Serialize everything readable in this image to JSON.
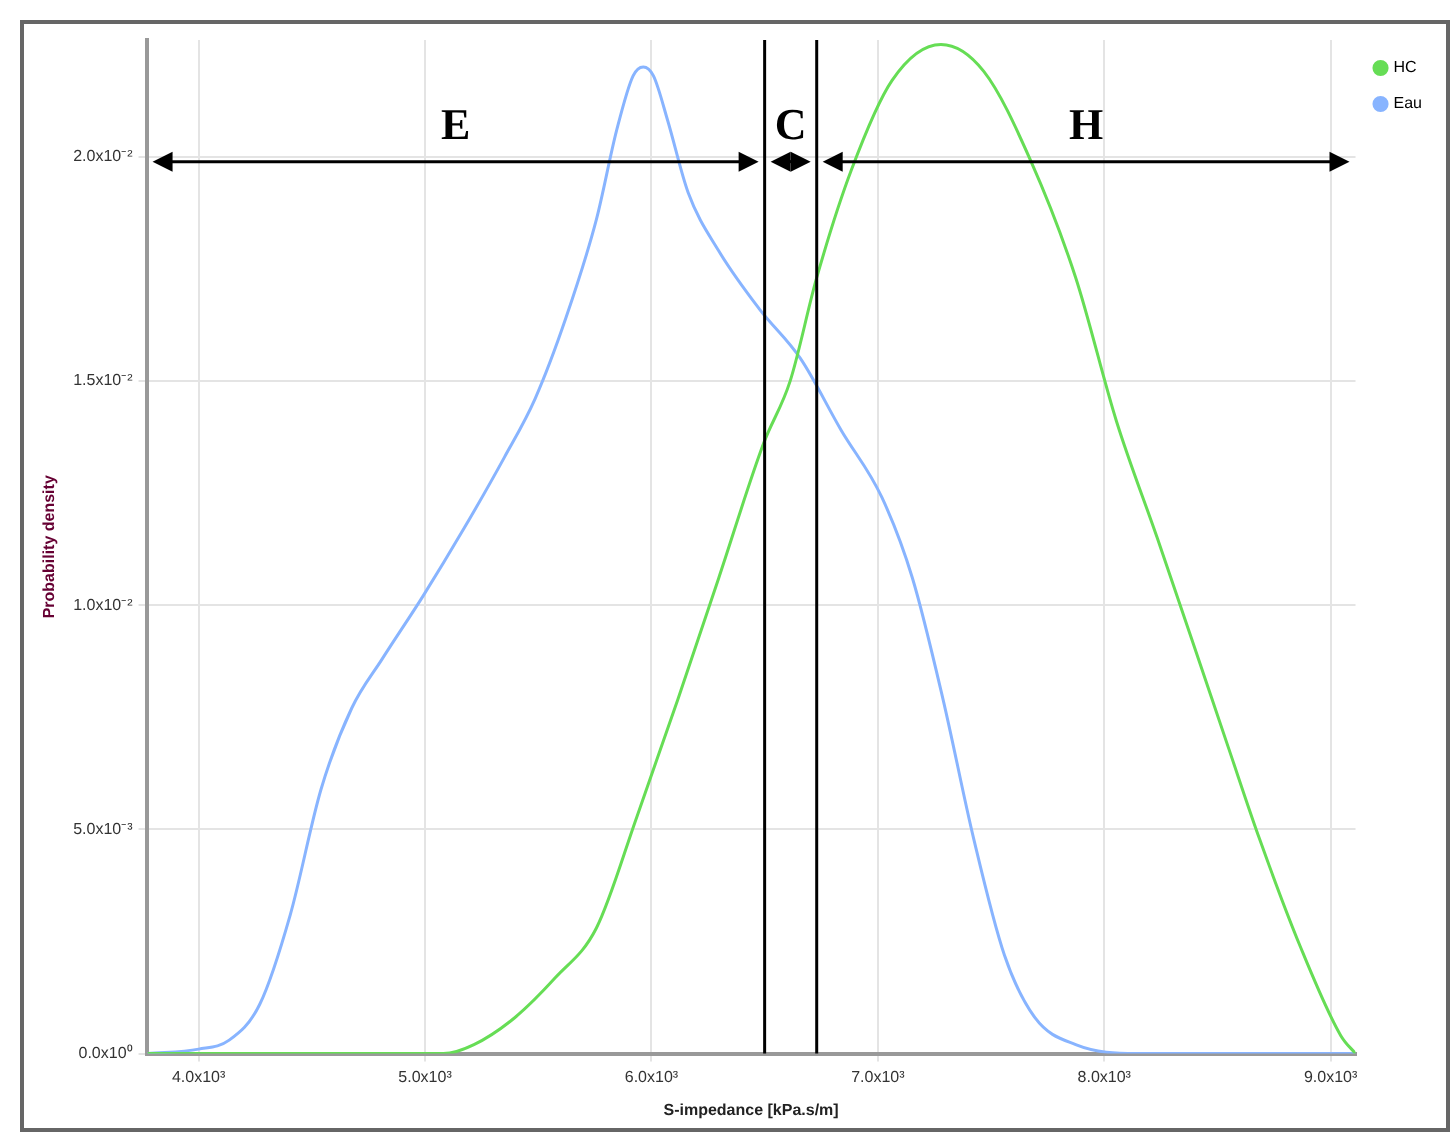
{
  "chart_data": {
    "type": "line",
    "xlabel": "S-impedance [kPa.s/m]",
    "ylabel": "Probability density",
    "xlim": [
      3770,
      9110
    ],
    "ylim": [
      0,
      0.0226
    ],
    "xticks": [
      {
        "value": 4000,
        "label": "4.0x10³"
      },
      {
        "value": 5000,
        "label": "5.0x10³"
      },
      {
        "value": 6000,
        "label": "6.0x10³"
      },
      {
        "value": 7000,
        "label": "7.0x10³"
      },
      {
        "value": 8000,
        "label": "8.0x10³"
      },
      {
        "value": 9000,
        "label": "9.0x10³"
      }
    ],
    "yticks": [
      {
        "value": 0,
        "label": "0.0x10⁰"
      },
      {
        "value": 0.005,
        "label": "5.0x10⁻³"
      },
      {
        "value": 0.01,
        "label": "1.0x10⁻²"
      },
      {
        "value": 0.015,
        "label": "1.5x10⁻²"
      },
      {
        "value": 0.02,
        "label": "2.0x10⁻²"
      }
    ],
    "series": [
      {
        "name": "HC",
        "color": "#66dd55",
        "x": [
          3775,
          5081,
          5216,
          5396,
          5577,
          5757,
          5937,
          6117,
          6297,
          6495,
          6613,
          6730,
          6883,
          7063,
          7279,
          7468,
          7676,
          7874,
          8054,
          8234,
          8396,
          8550,
          8685,
          8865,
          9045,
          9110
        ],
        "values": [
          0,
          0,
          0.0002,
          0.0008,
          0.0017,
          0.0028,
          0.0053,
          0.0079,
          0.0106,
          0.0136,
          0.015,
          0.0173,
          0.0197,
          0.0217,
          0.0225,
          0.0219,
          0.0199,
          0.0173,
          0.0141,
          0.0115,
          0.0091,
          0.0068,
          0.0048,
          0.0024,
          0.0004,
          0
        ]
      },
      {
        "name": "Eau",
        "color": "#88b4ff",
        "x": [
          3775,
          4000,
          4135,
          4270,
          4405,
          4541,
          4676,
          4811,
          4991,
          5171,
          5351,
          5486,
          5622,
          5757,
          5847,
          5919,
          5964,
          6009,
          6072,
          6162,
          6297,
          6477,
          6658,
          6838,
          7018,
          7153,
          7288,
          7423,
          7559,
          7694,
          7874,
          8144,
          9110
        ],
        "values": [
          0,
          0.0001,
          0.0003,
          0.0011,
          0.0031,
          0.0059,
          0.0077,
          0.0088,
          0.0102,
          0.0117,
          0.0133,
          0.0146,
          0.0164,
          0.0186,
          0.0206,
          0.0218,
          0.022,
          0.0218,
          0.0208,
          0.0192,
          0.0179,
          0.0166,
          0.0155,
          0.0139,
          0.0124,
          0.0106,
          0.0079,
          0.0048,
          0.0022,
          0.0008,
          0.0002,
          0,
          0
        ]
      }
    ],
    "ref_lines": [
      {
        "axis": "x",
        "value": 6500,
        "color": "#000000"
      },
      {
        "axis": "x",
        "value": 6730,
        "color": "#000000"
      }
    ],
    "annotations": [
      "E",
      "C",
      "H"
    ],
    "grid": true,
    "legend": "top right",
    "marker": "none",
    "line_style": "solid"
  }
}
